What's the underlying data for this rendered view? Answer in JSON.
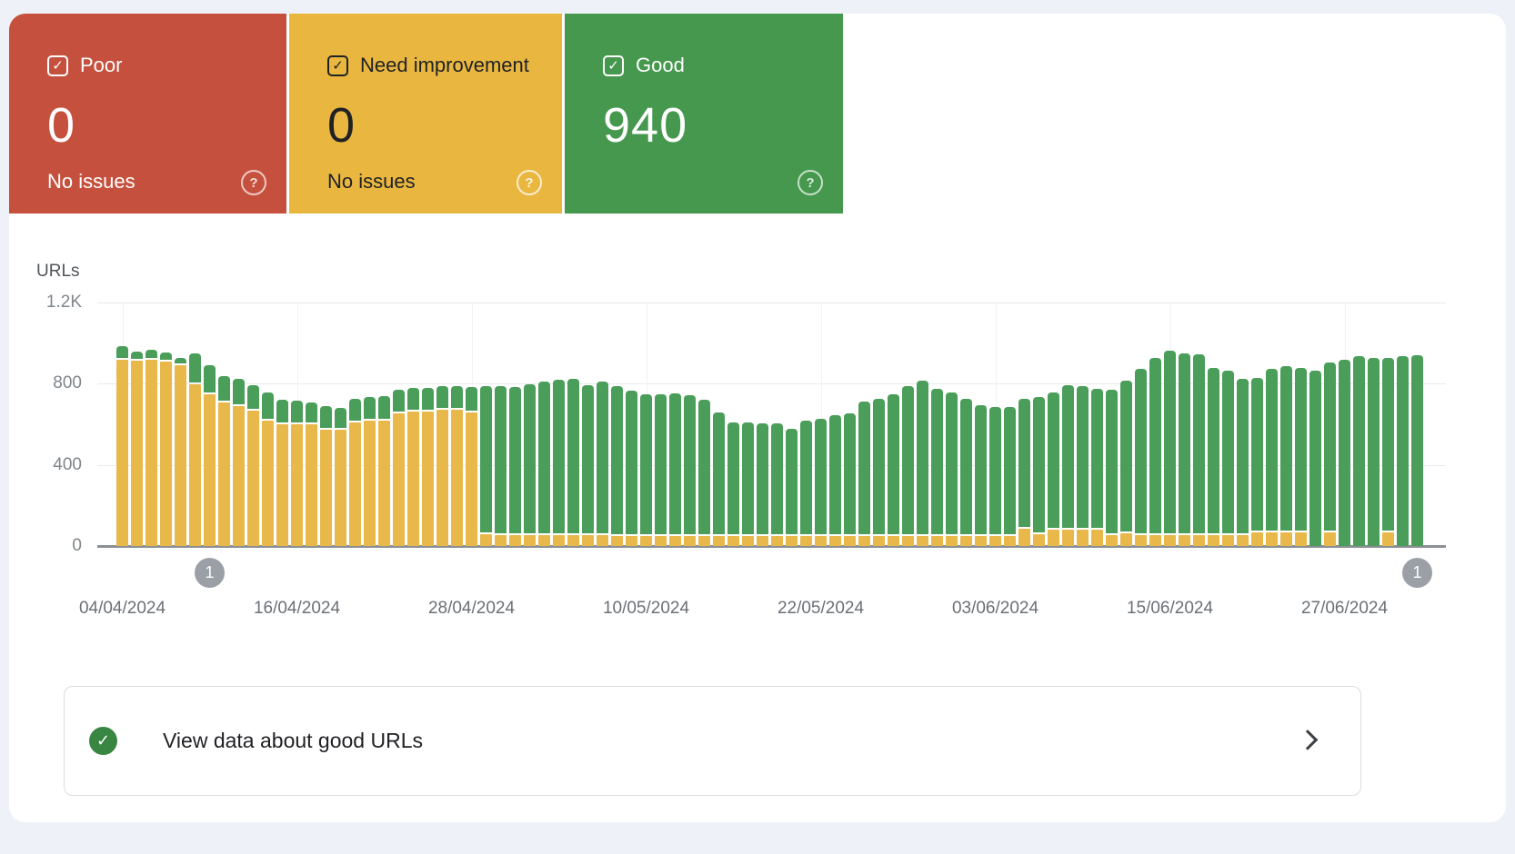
{
  "page_bg": "#eef2f8",
  "summary_cards": [
    {
      "id": "poor",
      "label": "Poor",
      "value": "0",
      "subtext": "No issues",
      "bg": "#c6503e",
      "fg": "#ffffff",
      "help_icon": "help-icon"
    },
    {
      "id": "need-improvement",
      "label": "Need improvement",
      "value": "0",
      "subtext": "No issues",
      "bg": "#e9b740",
      "fg": "#202124",
      "help_icon": "help-icon"
    },
    {
      "id": "good",
      "label": "Good",
      "value": "940",
      "subtext": "",
      "bg": "#45984d",
      "fg": "#ffffff",
      "help_icon": "help-icon"
    }
  ],
  "chart_data": {
    "type": "bar",
    "stacked": true,
    "ylabel": "URLs",
    "ylim": [
      0,
      1200
    ],
    "grid": "horizontal",
    "y_ticks": [
      {
        "label": "1.2K",
        "value": 1200
      },
      {
        "label": "800",
        "value": 800
      },
      {
        "label": "400",
        "value": 400
      },
      {
        "label": "0",
        "value": 0
      }
    ],
    "x_tick_labels": [
      "04/04/2024",
      "16/04/2024",
      "28/04/2024",
      "10/05/2024",
      "22/05/2024",
      "03/06/2024",
      "15/06/2024",
      "27/06/2024"
    ],
    "x_tick_bar_indices": [
      0,
      12,
      24,
      36,
      48,
      60,
      72,
      84
    ],
    "bar_count": 90,
    "series": [
      {
        "name": "Need improvement",
        "color": "#e8b84a",
        "values": [
          920,
          915,
          918,
          908,
          890,
          795,
          746,
          706,
          688,
          665,
          620,
          598,
          598,
          598,
          575,
          571,
          611,
          620,
          620,
          652,
          661,
          661,
          670,
          670,
          656,
          58,
          55,
          55,
          55,
          55,
          55,
          55,
          55,
          55,
          50,
          50,
          50,
          50,
          50,
          50,
          50,
          50,
          50,
          50,
          48,
          48,
          48,
          48,
          48,
          48,
          48,
          48,
          48,
          48,
          48,
          48,
          48,
          48,
          48,
          48,
          48,
          48,
          84,
          60,
          80,
          80,
          80,
          80,
          55,
          62,
          55,
          55,
          55,
          55,
          55,
          55,
          55,
          55,
          65,
          65,
          65,
          65,
          0,
          65,
          0,
          0,
          0,
          65,
          0,
          0
        ]
      },
      {
        "name": "Good",
        "color": "#4a9e5a",
        "values": [
          55,
          35,
          38,
          36,
          27,
          144,
          135,
          121,
          125,
          117,
          126,
          112,
          108,
          99,
          104,
          99,
          104,
          104,
          108,
          108,
          108,
          108,
          108,
          108,
          120,
          719,
          725,
          720,
          735,
          745,
          755,
          758,
          728,
          746,
          729,
          706,
          688,
          691,
          695,
          685,
          661,
          601,
          550,
          550,
          547,
          547,
          522,
          559,
          570,
          588,
          597,
          657,
          670,
          693,
          732,
          758,
          717,
          702,
          670,
          637,
          627,
          627,
          634,
          665,
          670,
          702,
          697,
          684,
          705,
          743,
          807,
          862,
          897,
          885,
          879,
          814,
          800,
          758,
          756,
          797,
          814,
          805,
          862,
          831,
          920,
          934,
          925,
          853,
          934,
          940
        ]
      }
    ],
    "markers": [
      {
        "label": "1",
        "bar_index": 6
      },
      {
        "label": "1",
        "bar_index": 89
      }
    ]
  },
  "footer": {
    "label": "View data about good URLs",
    "icon": "check-circle-icon",
    "icon_color": "#388642",
    "check_glyph": "✓",
    "chevron_icon": "chevron-right-icon"
  }
}
